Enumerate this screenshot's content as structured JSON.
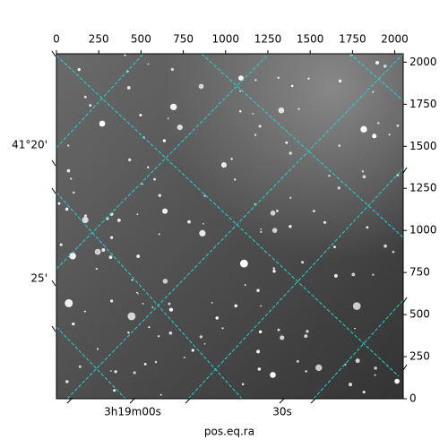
{
  "chart_data": {
    "type": "image",
    "xlabel": "pos.eq.ra",
    "xlim": [
      0,
      2050
    ],
    "xticks": [
      0,
      250,
      500,
      750,
      1000,
      1250,
      1500,
      1750,
      2000
    ],
    "ylim": [
      0,
      2050
    ],
    "yticks": [
      0,
      250,
      500,
      750,
      1000,
      1250,
      1500,
      1750,
      2000
    ],
    "ra_tick_labels": [
      "3h19m00s",
      "30s"
    ],
    "dec_tick_labels": [
      "41°20'",
      "25'"
    ],
    "grid_color": "#22d3d3"
  }
}
